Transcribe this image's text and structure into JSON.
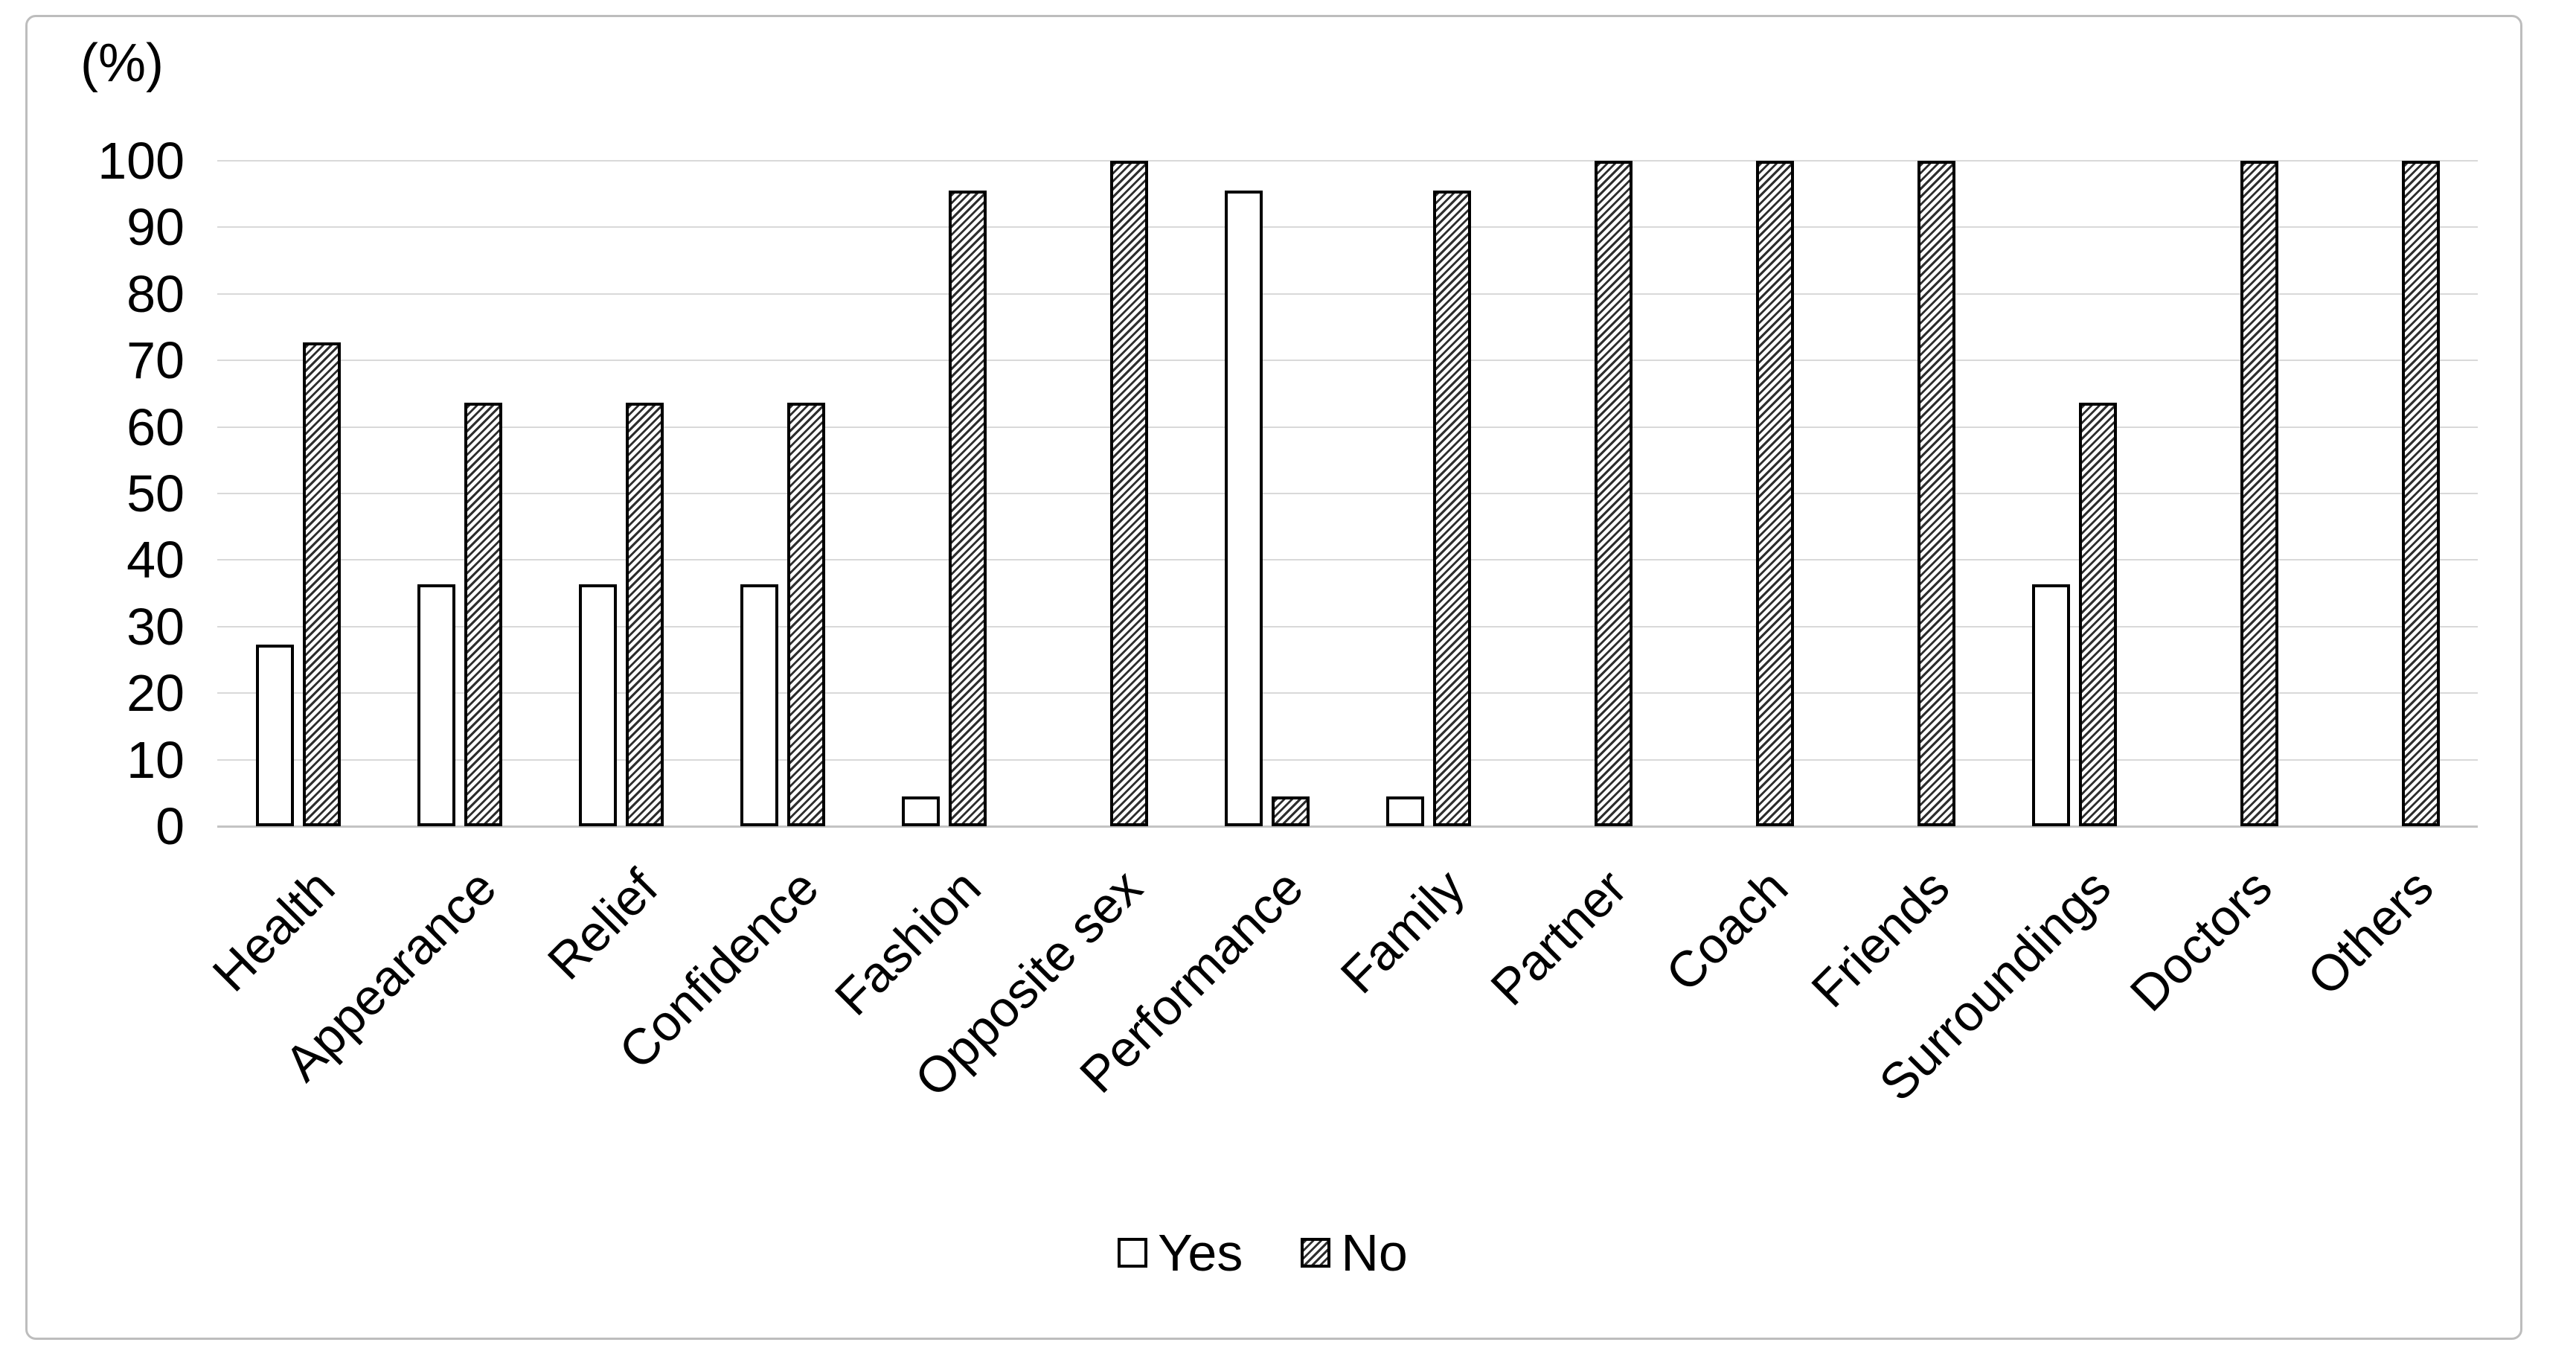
{
  "chart_data": {
    "type": "bar",
    "title": "",
    "axis_unit_label": "(%)",
    "categories": [
      "Health",
      "Appearance",
      "Relief",
      "Confidence",
      "Fashion",
      "Opposite sex",
      "Performance",
      "Family",
      "Partner",
      "Coach",
      "Friends",
      "Surroundings",
      "Doctors",
      "Others"
    ],
    "series": [
      {
        "name": "Yes",
        "style": "plain",
        "values": [
          27.3,
          36.4,
          36.4,
          36.4,
          4.5,
          0,
          95.5,
          4.5,
          0,
          0,
          0,
          36.4,
          0,
          0
        ]
      },
      {
        "name": "No",
        "style": "hatched",
        "values": [
          72.7,
          63.6,
          63.6,
          63.6,
          95.5,
          100,
          4.5,
          95.5,
          100,
          100,
          100,
          63.6,
          100,
          100
        ]
      }
    ],
    "ylim": [
      0,
      100
    ],
    "ytick_step": 10,
    "ytick_labels": [
      "0",
      "10",
      "20",
      "30",
      "40",
      "50",
      "60",
      "70",
      "80",
      "90",
      "100"
    ],
    "grid": true,
    "legend_position": "bottom-center",
    "xlabel": "",
    "ylabel": "(%)",
    "colors": {
      "bar_fill": "#ffffff",
      "bar_border": "#000000",
      "hatch_stripe": "#2e2e2e",
      "gridline": "#d9d9d9",
      "axis_baseline": "#c3c3c3",
      "frame_border": "#bdbdbd",
      "text": "#000000",
      "background": "#ffffff"
    }
  }
}
